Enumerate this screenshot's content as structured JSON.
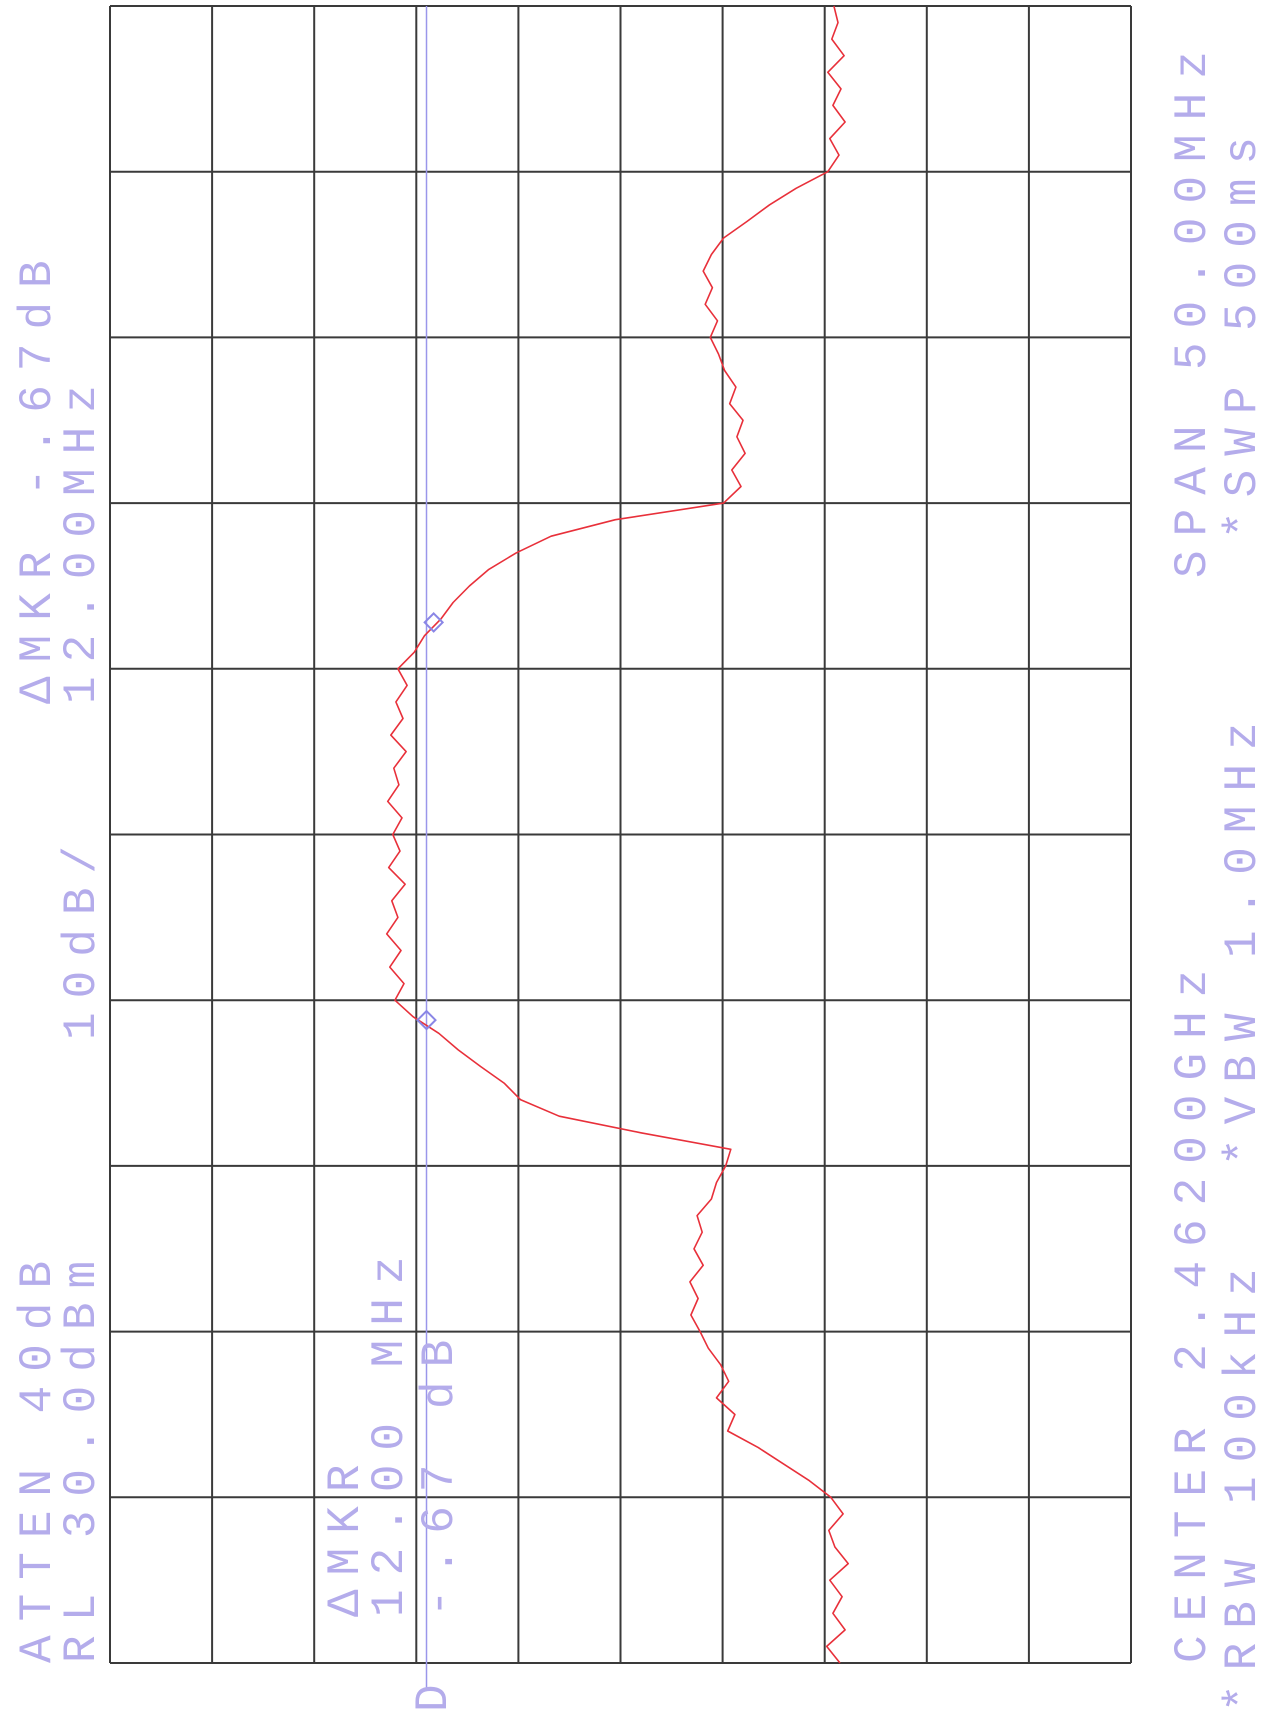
{
  "chart_data": {
    "type": "line",
    "annotations": [
      "ATTEN 40dB",
      "RL 30.0dBm",
      "10dB/",
      "ΔMKR -.67dB",
      "12.00MHz",
      "ΔMKR",
      "12.00 MHz",
      "-.67 dB",
      "D",
      "CENTER 2.46200GHz",
      "*RBW 100kHz",
      "*VBW 1.0MHz",
      "SPAN 50.00MHz",
      "*SWP 500ms"
    ],
    "x": [
      2437,
      2437.5,
      2438,
      2438.5,
      2439,
      2439.5,
      2440,
      2440.5,
      2441,
      2441.5,
      2442,
      2442.5,
      2443,
      2443.5,
      2444,
      2444.5,
      2445,
      2445.5,
      2446,
      2446.5,
      2447,
      2447.5,
      2448,
      2448.5,
      2449,
      2449.5,
      2450,
      2450.5,
      2451,
      2451.5,
      2452,
      2452.5,
      2453,
      2453.5,
      2454,
      2454.5,
      2455,
      2455.5,
      2456,
      2456.5,
      2457,
      2457.5,
      2458,
      2458.5,
      2459,
      2459.5,
      2460,
      2460.5,
      2461,
      2461.5,
      2462,
      2462.5,
      2463,
      2463.5,
      2464,
      2464.5,
      2465,
      2465.5,
      2466,
      2466.5,
      2467,
      2467.5,
      2468,
      2468.5,
      2469,
      2469.5,
      2470,
      2470.5,
      2471,
      2471.5,
      2472,
      2472.5,
      2473,
      2473.5,
      2474,
      2474.5,
      2475,
      2475.5,
      2476,
      2476.5,
      2477,
      2477.5,
      2478,
      2478.5,
      2479,
      2479.5,
      2480,
      2480.5,
      2481,
      2481.5,
      2482,
      2482.5,
      2483,
      2483.5,
      2484,
      2484.5,
      2485,
      2485.5,
      2486,
      2486.5,
      2487
    ],
    "values": [
      -41.5,
      -40.2,
      -42,
      -40.8,
      -41.7,
      -40.5,
      -42.3,
      -41,
      -40.4,
      -41.8,
      -40.6,
      -38.5,
      -36,
      -33.5,
      -30.5,
      -31.2,
      -29.4,
      -30.6,
      -29.8,
      -28.6,
      -27.8,
      -26.9,
      -27.6,
      -26.8,
      -28.1,
      -27.2,
      -28,
      -27.5,
      -28.9,
      -29.4,
      -30.3,
      -30.8,
      -22,
      -14,
      -10.2,
      -8.6,
      -6.3,
      -4.1,
      -2.2,
      0.3,
      2.1,
      1.2,
      2.6,
      1.5,
      2.9,
      1.8,
      2.4,
      1.1,
      2.7,
      1.6,
      2.3,
      1.4,
      2.8,
      1.7,
      2.2,
      1.0,
      2.5,
      1.3,
      2.0,
      0.9,
      1.8,
      0.2,
      -0.8,
      -2.4,
      -3.6,
      -5.2,
      -7.1,
      -9.8,
      -13.2,
      -19.5,
      -30.1,
      -31.8,
      -30.9,
      -32.2,
      -31.4,
      -32,
      -30.7,
      -31.3,
      -30.2,
      -29.6,
      -28.8,
      -29.5,
      -28.3,
      -29,
      -28.1,
      -28.9,
      -30.1,
      -32.4,
      -34.6,
      -37.2,
      -40.3,
      -41.4,
      -40.5,
      -42,
      -40.8,
      -41.6,
      -40.3,
      -41.9,
      -40.7,
      -41.3,
      -40.9
    ],
    "color": "#e8303a",
    "markers": [
      {
        "x": 2456.4,
        "y": -1.0
      },
      {
        "x": 2468.4,
        "y": -1.7
      }
    ],
    "marker_color": "#8a86e6",
    "display_line": -1.0,
    "display_line_color": "#9a96ea",
    "xlim": [
      2437,
      2487
    ],
    "ylim": [
      -70,
      30
    ],
    "xticks": [
      2437,
      2442,
      2447,
      2452,
      2457,
      2462,
      2467,
      2472,
      2477,
      2482,
      2487
    ],
    "yticks": [
      -70,
      -60,
      -50,
      -40,
      -30,
      -20,
      -10,
      0,
      10,
      20,
      30
    ],
    "grid": true
  }
}
